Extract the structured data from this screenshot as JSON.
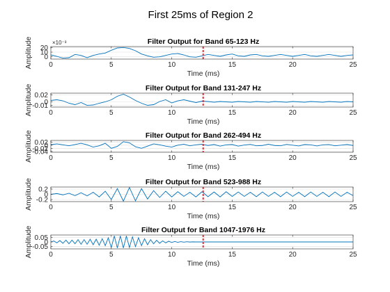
{
  "figure_title": "First 25ms of Region 2",
  "colors": {
    "line": "#0072BD",
    "marker": "#E8303A",
    "axis": "#262626",
    "grid": "#DFDFDF"
  },
  "chart_data": [
    {
      "type": "line",
      "title": "Filter Output for Band 65-123 Hz",
      "xlabel": "Time (ms)",
      "ylabel": "Amplitude",
      "exponent": "×10⁻³",
      "xlim": [
        0,
        25
      ],
      "ylim": [
        -5,
        22
      ],
      "xticks": [
        "0",
        "5",
        "10",
        "15",
        "20",
        "25"
      ],
      "yticks": [
        {
          "v": 0,
          "label": "0"
        },
        {
          "v": 10,
          "label": "10"
        },
        {
          "v": 20,
          "label": "20"
        }
      ],
      "marker_x": 12.6,
      "x": [
        0,
        0.5,
        1,
        1.5,
        2,
        2.5,
        3,
        3.5,
        4,
        4.5,
        5,
        5.5,
        6,
        6.5,
        7,
        7.5,
        8,
        8.5,
        9,
        9.5,
        10,
        10.5,
        11,
        11.5,
        12,
        12.5,
        13,
        13.5,
        14,
        14.5,
        15,
        15.5,
        16,
        16.5,
        17,
        17.5,
        18,
        18.5,
        19,
        19.5,
        20,
        20.5,
        21,
        21.5,
        22,
        22.5,
        23,
        23.5,
        24,
        24.5,
        25
      ],
      "y": [
        4,
        1,
        -3,
        -2,
        5,
        3,
        -2,
        3,
        6,
        8,
        14,
        19,
        20,
        18,
        13,
        6,
        2,
        -1,
        0,
        3,
        6,
        7,
        4,
        0,
        -1,
        2,
        5,
        3,
        1,
        4,
        6,
        2,
        1,
        4,
        5,
        2,
        1,
        3,
        5,
        3,
        1,
        3,
        5,
        2,
        1,
        3,
        5,
        3,
        1,
        3,
        4
      ]
    },
    {
      "type": "line",
      "title": "Filter Output for Band 131-247 Hz",
      "xlabel": "Time (ms)",
      "ylabel": "Amplitude",
      "xlim": [
        0,
        25
      ],
      "ylim": [
        -0.015,
        0.025
      ],
      "xticks": [
        "0",
        "5",
        "10",
        "15",
        "20",
        "25"
      ],
      "yticks": [
        {
          "v": 0.02,
          "label": "0.02"
        },
        {
          "v": 0,
          "label": "0"
        },
        {
          "v": -0.01,
          "label": "-0.01"
        }
      ],
      "marker_x": 12.6,
      "x": [
        0,
        0.5,
        1,
        1.5,
        2,
        2.5,
        3,
        3.5,
        4,
        4.5,
        5,
        5.5,
        6,
        6.5,
        7,
        7.5,
        8,
        8.5,
        9,
        9.5,
        10,
        10.5,
        11,
        11.5,
        12,
        12.5,
        13,
        13.5,
        14,
        14.5,
        15,
        15.5,
        16,
        16.5,
        17,
        17.5,
        18,
        18.5,
        19,
        19.5,
        20,
        20.5,
        21,
        21.5,
        22,
        22.5,
        23,
        23.5,
        24,
        24.5,
        25
      ],
      "y": [
        0.004,
        0.006,
        0.003,
        -0.004,
        -0.008,
        -0.002,
        -0.01,
        -0.009,
        -0.004,
        0,
        0.006,
        0.016,
        0.022,
        0.014,
        0.004,
        -0.004,
        -0.01,
        -0.008,
        0.001,
        0.006,
        -0.003,
        0.003,
        0.006,
        0.002,
        -0.002,
        0.002,
        0.001,
        -0.001,
        0.001,
        0,
        -0.001,
        0.001,
        0,
        -0.001,
        0.001,
        0,
        -0.001,
        0.001,
        0,
        -0.001,
        0.001,
        0,
        -0.001,
        0.001,
        0,
        -0.001,
        0.001,
        0,
        -0.001,
        0.001,
        0
      ]
    },
    {
      "type": "line",
      "title": "Filter Output for Band 262-494 Hz",
      "xlabel": "Time (ms)",
      "ylabel": "Amplitude",
      "xlim": [
        0,
        25
      ],
      "ylim": [
        -0.045,
        0.03
      ],
      "xticks": [
        "0",
        "5",
        "10",
        "15",
        "20",
        "25"
      ],
      "yticks": [
        {
          "v": 0.02,
          "label": "0.02"
        },
        {
          "v": 0,
          "label": "0"
        },
        {
          "v": -0.02,
          "label": "-0.02"
        },
        {
          "v": -0.04,
          "label": "-0.04"
        }
      ],
      "marker_x": 12.6,
      "x": [
        0,
        0.5,
        1,
        1.5,
        2,
        2.5,
        3,
        3.5,
        4,
        4.5,
        5,
        5.5,
        6,
        6.5,
        7,
        7.5,
        8,
        8.5,
        9,
        9.5,
        10,
        10.5,
        11,
        11.5,
        12,
        12.5,
        13,
        13.5,
        14,
        14.5,
        15,
        15.5,
        16,
        16.5,
        17,
        17.5,
        18,
        18.5,
        19,
        19.5,
        20,
        20.5,
        21,
        21.5,
        22,
        22.5,
        23,
        23.5,
        24,
        24.5,
        25
      ],
      "y": [
        0.003,
        0.008,
        0.002,
        -0.004,
        0.004,
        0.012,
        0.002,
        -0.012,
        -0.004,
        0.012,
        -0.02,
        -0.008,
        0.022,
        0.015,
        -0.01,
        -0.02,
        -0.006,
        0.008,
        0.002,
        -0.006,
        -0.012,
        0,
        0.006,
        -0.004,
        0.002,
        0.006,
        -0.002,
        0.004,
        -0.006,
        0.002,
        0.004,
        -0.006,
        0.001,
        0.005,
        -0.004,
        -0.002,
        0.006,
        -0.002,
        -0.004,
        0.005,
        0,
        -0.005,
        0.004,
        0.002,
        -0.005,
        0.002,
        0.004,
        -0.004,
        0,
        0.004,
        -0.002
      ]
    },
    {
      "type": "line",
      "title": "Filter Output for Band 523-988 Hz",
      "xlabel": "Time (ms)",
      "ylabel": "Amplitude",
      "xlim": [
        0,
        25
      ],
      "ylim": [
        -0.28,
        0.28
      ],
      "xticks": [
        "0",
        "5",
        "10",
        "15",
        "20",
        "25"
      ],
      "yticks": [
        {
          "v": 0.2,
          "label": "0.2"
        },
        {
          "v": 0,
          "label": "0"
        },
        {
          "v": -0.2,
          "label": "-0.2"
        }
      ],
      "marker_x": 12.6,
      "x": [
        0,
        0.5,
        1,
        1.5,
        2,
        2.5,
        3,
        3.5,
        4,
        4.5,
        5,
        5.5,
        6,
        6.5,
        7,
        7.5,
        8,
        8.5,
        9,
        9.5,
        10,
        10.5,
        11,
        11.5,
        12,
        12.5,
        13,
        13.5,
        14,
        14.5,
        15,
        15.5,
        16,
        16.5,
        17,
        17.5,
        18,
        18.5,
        19,
        19.5,
        20,
        20.5,
        21,
        21.5,
        22,
        22.5,
        23,
        23.5,
        24,
        24.5,
        25
      ],
      "y": [
        0,
        0.03,
        -0.02,
        0.04,
        -0.05,
        0.06,
        -0.06,
        0.08,
        -0.1,
        0.12,
        -0.2,
        0.22,
        -0.26,
        0.26,
        -0.25,
        0.22,
        -0.18,
        0.14,
        -0.12,
        0.12,
        -0.1,
        0.1,
        -0.08,
        0.08,
        -0.1,
        0.1,
        -0.09,
        0.09,
        -0.1,
        0.1,
        -0.08,
        0.09,
        -0.08,
        0.08,
        -0.09,
        0.09,
        -0.08,
        0.08,
        -0.09,
        0.09,
        -0.08,
        0.08,
        -0.09,
        0.09,
        -0.08,
        0.08,
        -0.09,
        0.09,
        -0.08,
        0.08,
        -0.05
      ]
    },
    {
      "type": "line",
      "title": "Filter Output for Band 1047-1976 Hz",
      "xlabel": "Time (ms)",
      "ylabel": "Amplitude",
      "xlim": [
        0,
        25
      ],
      "ylim": [
        -0.075,
        0.075
      ],
      "xticks": [
        "0",
        "5",
        "10",
        "15",
        "20",
        "25"
      ],
      "yticks": [
        {
          "v": 0.05,
          "label": "0.05"
        },
        {
          "v": 0,
          "label": "0"
        },
        {
          "v": -0.05,
          "label": "-0.05"
        }
      ],
      "marker_x": 12.6,
      "x": [
        0,
        0.25,
        0.5,
        0.75,
        1,
        1.25,
        1.5,
        1.75,
        2,
        2.25,
        2.5,
        2.75,
        3,
        3.25,
        3.5,
        3.75,
        4,
        4.25,
        4.5,
        4.75,
        5,
        5.25,
        5.5,
        5.75,
        6,
        6.25,
        6.5,
        6.75,
        7,
        7.25,
        7.5,
        7.75,
        8,
        8.25,
        8.5,
        8.75,
        9,
        9.25,
        9.5,
        9.75,
        10,
        10.25,
        10.5,
        10.75,
        11,
        11.25,
        11.5,
        11.75,
        12,
        12.5,
        13,
        14,
        15,
        16,
        17,
        18,
        19,
        20,
        21,
        22,
        23,
        24,
        25
      ],
      "y": [
        0,
        0.01,
        -0.01,
        0.015,
        -0.015,
        0.02,
        -0.02,
        0.02,
        -0.02,
        0.025,
        -0.025,
        0.025,
        -0.025,
        0.03,
        -0.03,
        0.03,
        -0.035,
        0.035,
        -0.04,
        0.045,
        -0.06,
        0.065,
        -0.065,
        0.065,
        -0.065,
        0.065,
        -0.06,
        0.055,
        -0.05,
        0.045,
        -0.04,
        0.035,
        -0.03,
        0.025,
        -0.02,
        0.018,
        -0.015,
        0.012,
        -0.01,
        0.008,
        -0.006,
        0.005,
        -0.004,
        0.003,
        -0.002,
        0.002,
        -0.001,
        0.001,
        0,
        0,
        0,
        0,
        0,
        0,
        0,
        0,
        0,
        0,
        0,
        0,
        0,
        0,
        0
      ]
    }
  ]
}
